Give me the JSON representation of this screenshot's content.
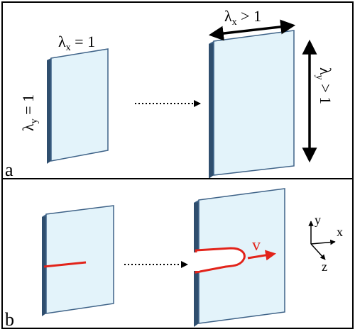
{
  "panels": [
    {
      "id": "a",
      "label": "a"
    },
    {
      "id": "b",
      "label": "b"
    }
  ],
  "panel_a": {
    "lambda_y_equal": {
      "symbol": "λ",
      "sub": "y",
      "rel": " = 1"
    },
    "lambda_x_equal": {
      "symbol": "λ",
      "sub": "x",
      "rel": " = 1"
    },
    "lambda_x_greater": {
      "symbol": "λ",
      "sub": "x",
      "rel": " > 1"
    },
    "lambda_y_greater": {
      "symbol": "λ",
      "sub": "y",
      "rel": " > 1"
    }
  },
  "panel_b": {
    "velocity_label": "v",
    "axes": {
      "y": "y",
      "x": "x",
      "z": "z"
    }
  },
  "colors": {
    "sheet_fill": "#E3F3FA",
    "sheet_edge": "#3F6388",
    "sheet_edge_dark": "#2F4E6E",
    "crack": "#E2231A",
    "frame": "#000000"
  }
}
